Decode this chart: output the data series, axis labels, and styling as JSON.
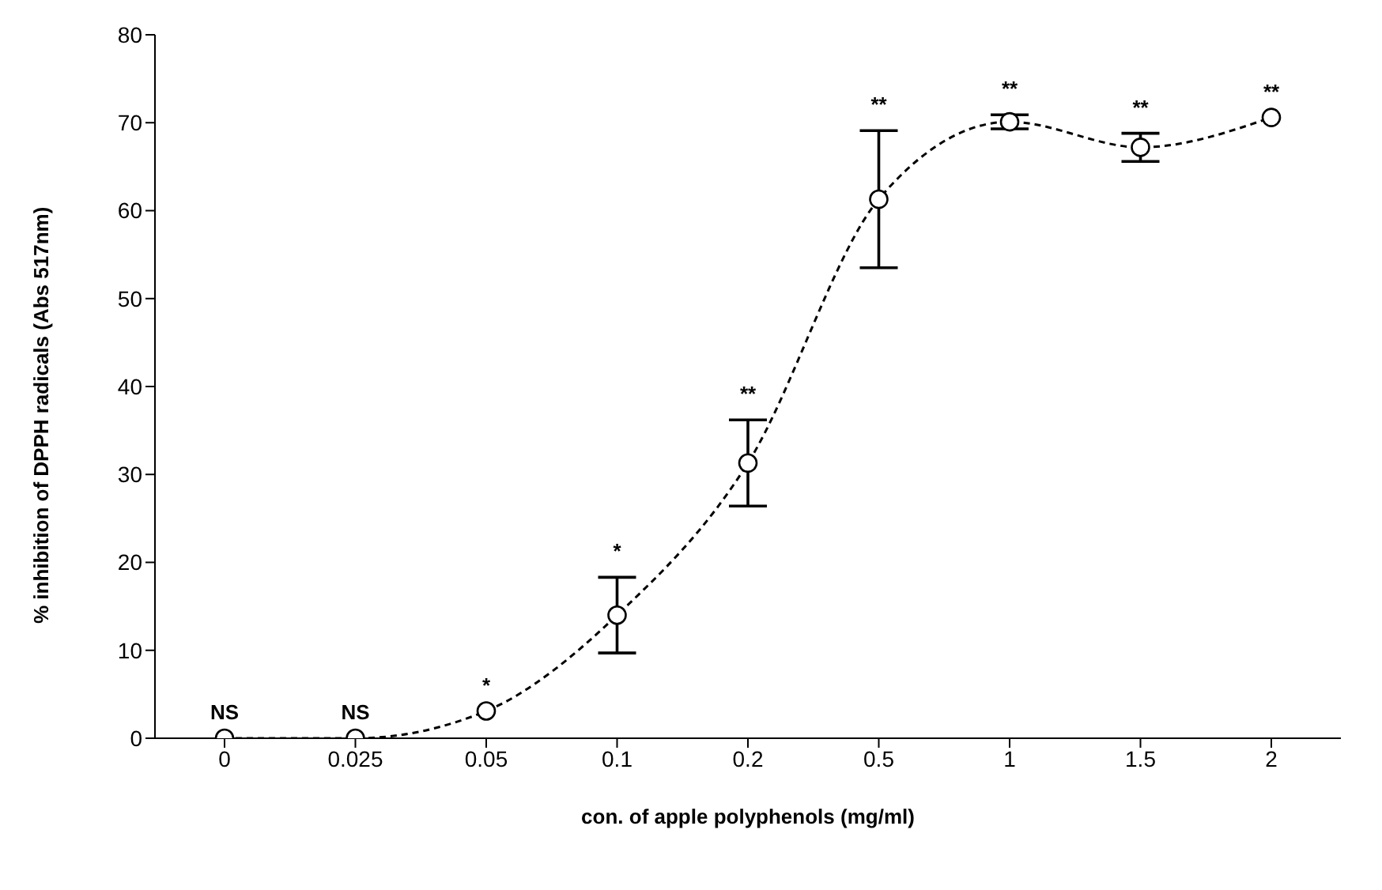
{
  "chart_data": {
    "type": "line",
    "xlabel": "con. of apple polyphenols (mg/ml)",
    "ylabel": "% inhibition of DPPH radicals (Abs 517nm)",
    "categories": [
      "0",
      "0.025",
      "0.05",
      "0.1",
      "0.2",
      "0.5",
      "1",
      "1.5",
      "2"
    ],
    "series": [
      {
        "color": "#000000",
        "values": [
          0,
          0,
          3.1,
          14,
          31.3,
          61.3,
          70.1,
          67.2,
          70.6
        ],
        "errors": [
          null,
          null,
          null,
          4.3,
          4.9,
          7.8,
          0.8,
          1.6,
          null
        ]
      }
    ],
    "ylim": [
      0,
      80
    ],
    "yticks": [
      0,
      10,
      20,
      30,
      40,
      50,
      60,
      70,
      80
    ],
    "grid": false,
    "legend": false,
    "marker": "circle",
    "line_style": "dashed",
    "annotations": [
      {
        "text": "NS",
        "x": "0",
        "y": 0
      },
      {
        "text": "NS",
        "x": "0.025",
        "y": 0
      },
      {
        "text": "*",
        "x": "0.05",
        "y": 3.1
      },
      {
        "text": "*",
        "x": "0.1",
        "y": 18.3
      },
      {
        "text": "**",
        "x": "0.2",
        "y": 36.2
      },
      {
        "text": "**",
        "x": "0.5",
        "y": 69.1
      },
      {
        "text": "**",
        "x": "1",
        "y": 70.9
      },
      {
        "text": "**",
        "x": "1.5",
        "y": 68.8
      },
      {
        "text": "**",
        "x": "2",
        "y": 70.6
      }
    ]
  }
}
